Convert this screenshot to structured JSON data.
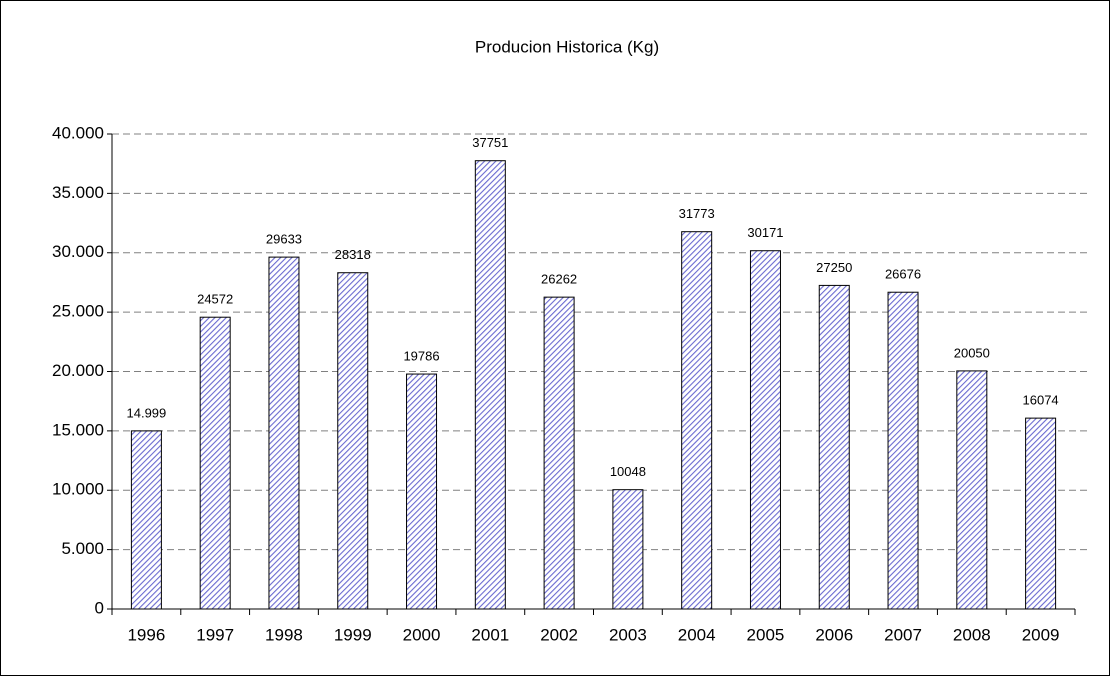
{
  "chart_data": {
    "type": "bar",
    "title": "Producion Historica (Kg)",
    "categories": [
      "1996",
      "1997",
      "1998",
      "1999",
      "2000",
      "2001",
      "2002",
      "2003",
      "2004",
      "2005",
      "2006",
      "2007",
      "2008",
      "2009"
    ],
    "values": [
      14999,
      24572,
      29633,
      28318,
      19786,
      37751,
      26262,
      10048,
      31773,
      30171,
      27250,
      26676,
      20050,
      16074
    ],
    "value_labels": [
      "14.999",
      "24572",
      "29633",
      "28318",
      "19786",
      "37751",
      "26262",
      "10048",
      "31773",
      "30171",
      "27250",
      "26676",
      "20050",
      "16074"
    ],
    "color": "#6a6ad0",
    "ylim": [
      0,
      40000
    ],
    "yticks": [
      0,
      {
        "value": 5000,
        "label": "5.000"
      },
      {
        "value": 10000,
        "label": "10.000"
      },
      {
        "value": 15000,
        "label": "15.000"
      },
      {
        "value": 20000,
        "label": "20.000"
      },
      {
        "value": 25000,
        "label": "25.000"
      },
      {
        "value": 30000,
        "label": "30.000"
      },
      {
        "value": 35000,
        "label": "35.000"
      },
      {
        "value": 40000,
        "label": "40.000"
      }
    ],
    "grid": true
  }
}
